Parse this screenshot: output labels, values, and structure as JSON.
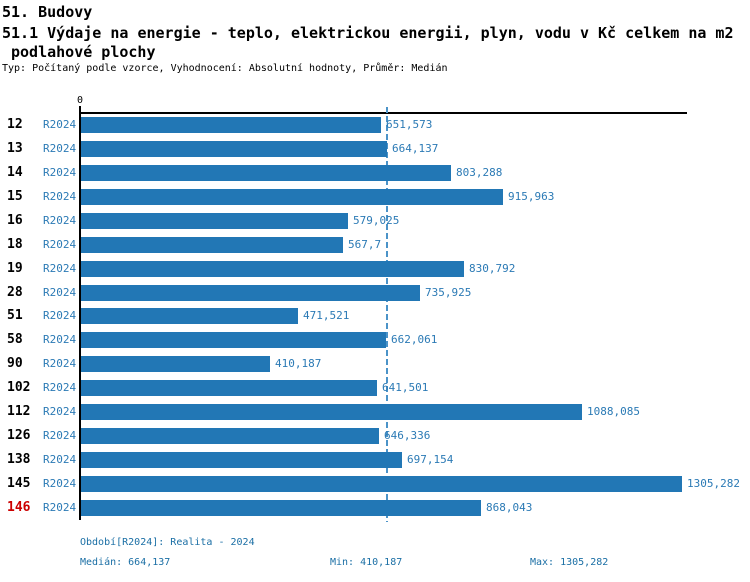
{
  "title": "51. Budovy",
  "subtitle_line1": "51.1 Výdaje na energie - teplo, elektrickou energii, plyn, vodu v Kč celkem na m2",
  "subtitle_line2": "podlahové plochy",
  "meta": "Typ: Počítaný podle vzorce, Vyhodnocení: Absolutní hodnoty, Průměr: Medián",
  "chart_data": {
    "type": "bar",
    "orientation": "horizontal",
    "title": "51.1 Výdaje na energie - teplo, elektrickou energii, plyn, vodu v Kč celkem na m2 podlahové plochy",
    "axis_zero_label": "0",
    "series_label": "R2024",
    "categories": [
      "12",
      "13",
      "14",
      "15",
      "16",
      "18",
      "19",
      "28",
      "51",
      "58",
      "90",
      "102",
      "112",
      "126",
      "138",
      "145",
      "146"
    ],
    "values": [
      651.573,
      664.137,
      803.288,
      915.963,
      579.025,
      567.7,
      830.792,
      735.925,
      471.521,
      662.061,
      410.187,
      641.501,
      1088.085,
      646.336,
      697.154,
      1305.282,
      868.043
    ],
    "value_labels": [
      "651,573",
      "664,137",
      "803,288",
      "915,963",
      "579,025",
      "567,7",
      "830,792",
      "735,925",
      "471,521",
      "662,061",
      "410,187",
      "641,501",
      "1088,085",
      "646,336",
      "697,154",
      "1305,282",
      "868,043"
    ],
    "median": 664.137,
    "min": 410.187,
    "max": 1305.282,
    "highlight_category": "146",
    "xlim": [
      0,
      1320
    ],
    "grid": false,
    "legend_position": "none",
    "colors": {
      "bar": "#2277b5",
      "median_line": "#4b93c8",
      "value_text": "#2b7ab5",
      "highlight_text": "#cc0000",
      "footer_text": "#1b6fa5"
    }
  },
  "footer": {
    "period": "Období[R2024]: Realita - 2024",
    "median": "Medián: 664,137",
    "min": "Min: 410,187",
    "max": "Max: 1305,282"
  }
}
